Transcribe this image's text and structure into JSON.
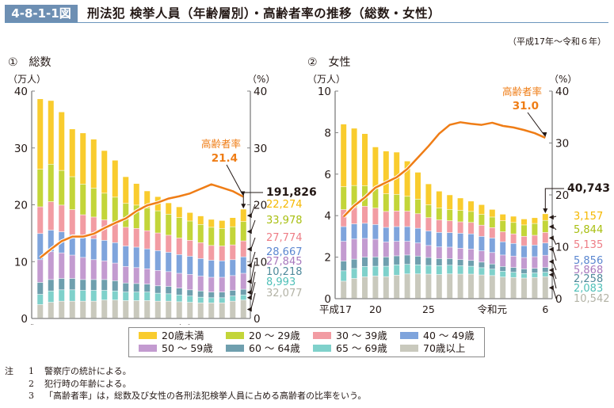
{
  "header": {
    "figure_number": "4-8-1-1図",
    "title": "刑法犯 検挙人員（年齢層別）・高齢者率の推移（総数・女性）",
    "period": "（平成17年～令和６年）"
  },
  "legend": [
    {
      "label": "20歳未満",
      "color": "#f9cc2e"
    },
    {
      "label": "20 ～ 29歳",
      "color": "#c3d539"
    },
    {
      "label": "30 ～ 39歳",
      "color": "#f29ca3"
    },
    {
      "label": "40 ～ 49歳",
      "color": "#7fa4dc"
    },
    {
      "label": "50 ～ 59歳",
      "color": "#c39bd0"
    },
    {
      "label": "60 ～ 64歳",
      "color": "#6f9fae"
    },
    {
      "label": "65 ～ 69歳",
      "color": "#7fd1cb"
    },
    {
      "label": "70歳以上",
      "color": "#c9c9bd"
    }
  ],
  "notes": {
    "head": "注",
    "items": [
      {
        "num": "1",
        "text": "警察庁の統計による。"
      },
      {
        "num": "2",
        "text": "犯行時の年齢による。"
      },
      {
        "num": "3",
        "text": "「高齢者率」は，総数及び女性の各刑法犯検挙人員に占める高齢者の比率をいう。"
      }
    ]
  },
  "line_color": "#ef7d16",
  "chart_data": [
    {
      "type": "bar",
      "subtype": "stacked bar with line (secondary axis)",
      "panel_label": "①　総数",
      "ylabel": "（万人）",
      "y2label": "（%）",
      "ylim": [
        0,
        40
      ],
      "yticks": [
        0,
        10,
        20,
        30,
        40
      ],
      "y2lim": [
        0,
        40
      ],
      "y2ticks": [
        0,
        10,
        20,
        30,
        40
      ],
      "x_tick_labels": [
        {
          "index": 0,
          "label": "平成17"
        },
        {
          "index": 3,
          "label": "20"
        },
        {
          "index": 8,
          "label": "25"
        },
        {
          "index": 14,
          "label": "令和元"
        },
        {
          "index": 19,
          "label": "6"
        }
      ],
      "categories": [
        "H17",
        "H18",
        "H19",
        "H20",
        "H21",
        "H22",
        "H23",
        "H24",
        "H25",
        "H26",
        "H27",
        "H28",
        "H29",
        "H30",
        "R1",
        "R2",
        "R3",
        "R4",
        "R5",
        "R6"
      ],
      "series": [
        {
          "name": "70歳以上",
          "values": [
            2.4,
            2.8,
            3.0,
            3.0,
            3.0,
            3.0,
            3.2,
            3.2,
            3.1,
            3.1,
            3.1,
            3.0,
            3.0,
            2.9,
            2.8,
            2.7,
            2.7,
            2.7,
            3.0,
            3.2
          ]
        },
        {
          "name": "65 ～ 69歳",
          "values": [
            1.8,
            2.0,
            2.0,
            2.0,
            1.9,
            1.9,
            1.7,
            1.6,
            1.5,
            1.5,
            1.5,
            1.4,
            1.3,
            1.2,
            1.1,
            1.0,
            0.9,
            0.9,
            0.9,
            0.9
          ]
        },
        {
          "name": "60 ～ 64歳",
          "values": [
            2.1,
            2.0,
            2.0,
            2.0,
            1.9,
            1.9,
            1.9,
            1.8,
            1.6,
            1.5,
            1.4,
            1.3,
            1.3,
            1.2,
            1.1,
            1.1,
            1.0,
            1.0,
            1.0,
            1.0
          ]
        },
        {
          "name": "50 ～ 59歳",
          "values": [
            4.0,
            4.9,
            4.5,
            4.1,
            3.9,
            3.5,
            3.3,
            3.1,
            2.9,
            2.8,
            2.7,
            2.7,
            2.6,
            2.6,
            2.7,
            2.6,
            2.6,
            2.6,
            2.6,
            2.8
          ]
        },
        {
          "name": "40 ～ 49歳",
          "values": [
            4.6,
            3.8,
            3.7,
            3.6,
            3.5,
            3.7,
            3.6,
            3.6,
            3.6,
            3.6,
            3.5,
            3.5,
            3.4,
            3.3,
            3.2,
            3.1,
            3.0,
            2.9,
            2.8,
            2.9
          ]
        },
        {
          "name": "30 ～ 39歳",
          "values": [
            4.7,
            5.0,
            4.7,
            4.4,
            4.0,
            3.8,
            3.6,
            3.4,
            3.3,
            3.3,
            3.2,
            3.1,
            3.0,
            2.9,
            2.8,
            2.8,
            2.6,
            2.6,
            2.6,
            2.8
          ]
        },
        {
          "name": "20 ～ 29歳",
          "values": [
            6.6,
            6.6,
            6.1,
            5.8,
            5.4,
            5.1,
            4.7,
            4.6,
            4.2,
            4.1,
            4.0,
            3.9,
            3.7,
            3.6,
            3.4,
            3.2,
            3.2,
            3.1,
            3.2,
            3.4
          ]
        },
        {
          "name": "20歳未満",
          "values": [
            12.4,
            11.2,
            10.3,
            8.4,
            9.0,
            8.6,
            7.5,
            6.5,
            4.7,
            3.8,
            3.0,
            2.5,
            2.0,
            1.9,
            1.5,
            1.5,
            1.4,
            1.4,
            1.6,
            2.2
          ]
        }
      ],
      "line": {
        "name": "高齢者率",
        "values": [
          10.7,
          12.2,
          13.6,
          14.4,
          14.4,
          14.9,
          15.9,
          16.8,
          17.6,
          18.9,
          19.9,
          20.4,
          21.1,
          21.5,
          22.0,
          22.8,
          23.6,
          23.0,
          22.4,
          21.4
        ]
      },
      "annotations": {
        "rate_label": "高齢者率",
        "rate_value": "21.4",
        "total_value": "191,826",
        "latest_values": [
          {
            "name": "20歳未満",
            "value": "22,274"
          },
          {
            "name": "20 ～ 29歳",
            "value": "33,978"
          },
          {
            "name": "30 ～ 39歳",
            "value": "27,774"
          },
          {
            "name": "40 ～ 49歳",
            "value": "28,667"
          },
          {
            "name": "50 ～ 59歳",
            "value": "27,845"
          },
          {
            "name": "60 ～ 64歳",
            "value": "10,218"
          },
          {
            "name": "65 ～ 69歳",
            "value": "8,993"
          },
          {
            "name": "70歳以上",
            "value": "32,077"
          }
        ]
      }
    },
    {
      "type": "bar",
      "subtype": "stacked bar with line (secondary axis)",
      "panel_label": "②　女性",
      "ylabel": "（万人）",
      "y2label": "（%）",
      "ylim": [
        0,
        10
      ],
      "yticks": [
        0,
        2,
        4,
        6,
        8,
        10
      ],
      "y2lim": [
        0,
        40
      ],
      "y2ticks": [
        0,
        10,
        20,
        30,
        40
      ],
      "x_tick_labels": [
        {
          "index": 0,
          "label": "平成17"
        },
        {
          "index": 3,
          "label": "20"
        },
        {
          "index": 8,
          "label": "25"
        },
        {
          "index": 14,
          "label": "令和元"
        },
        {
          "index": 19,
          "label": "6"
        }
      ],
      "categories": [
        "H17",
        "H18",
        "H19",
        "H20",
        "H21",
        "H22",
        "H23",
        "H24",
        "H25",
        "H26",
        "H27",
        "H28",
        "H29",
        "H30",
        "R1",
        "R2",
        "R3",
        "R4",
        "R5",
        "R6"
      ],
      "series": [
        {
          "name": "70歳以上",
          "values": [
            0.83,
            0.96,
            1.04,
            1.08,
            1.05,
            1.12,
            1.18,
            1.18,
            1.17,
            1.15,
            1.18,
            1.17,
            1.17,
            1.13,
            1.1,
            1.03,
            1.01,
            0.98,
            1.01,
            1.05
          ]
        },
        {
          "name": "65 ～ 69歳",
          "values": [
            0.5,
            0.48,
            0.5,
            0.47,
            0.5,
            0.5,
            0.46,
            0.44,
            0.42,
            0.43,
            0.42,
            0.4,
            0.38,
            0.35,
            0.31,
            0.28,
            0.25,
            0.22,
            0.22,
            0.21
          ]
        },
        {
          "name": "60 ～ 64歳",
          "values": [
            0.47,
            0.45,
            0.45,
            0.45,
            0.45,
            0.43,
            0.45,
            0.42,
            0.38,
            0.34,
            0.32,
            0.3,
            0.28,
            0.27,
            0.25,
            0.23,
            0.23,
            0.22,
            0.22,
            0.23
          ]
        },
        {
          "name": "50 ～ 59歳",
          "values": [
            0.95,
            0.97,
            0.9,
            0.85,
            0.72,
            0.7,
            0.66,
            0.63,
            0.58,
            0.56,
            0.55,
            0.55,
            0.55,
            0.54,
            0.55,
            0.55,
            0.55,
            0.55,
            0.56,
            0.59
          ]
        },
        {
          "name": "40 ～ 49歳",
          "values": [
            0.71,
            0.73,
            0.73,
            0.71,
            0.7,
            0.71,
            0.71,
            0.71,
            0.7,
            0.7,
            0.7,
            0.72,
            0.73,
            0.7,
            0.7,
            0.64,
            0.61,
            0.57,
            0.56,
            0.59
          ]
        },
        {
          "name": "30 ～ 39歳",
          "values": [
            0.82,
            0.79,
            0.82,
            0.79,
            0.77,
            0.75,
            0.74,
            0.7,
            0.64,
            0.6,
            0.57,
            0.55,
            0.55,
            0.54,
            0.5,
            0.48,
            0.46,
            0.45,
            0.47,
            0.51
          ]
        },
        {
          "name": "20 ～ 29歳",
          "values": [
            1.1,
            1.06,
            0.99,
            0.94,
            0.85,
            0.8,
            0.72,
            0.7,
            0.62,
            0.58,
            0.55,
            0.55,
            0.53,
            0.52,
            0.51,
            0.53,
            0.55,
            0.55,
            0.57,
            0.58
          ]
        },
        {
          "name": "20歳未満",
          "values": [
            3.02,
            2.76,
            2.51,
            2.01,
            2.06,
            2.04,
            1.7,
            1.3,
            1.01,
            0.81,
            0.7,
            0.6,
            0.5,
            0.47,
            0.37,
            0.32,
            0.3,
            0.29,
            0.28,
            0.32
          ]
        }
      ],
      "line": {
        "name": "高齢者率",
        "values": [
          15.8,
          17.9,
          19.5,
          21.4,
          22.4,
          23.4,
          25.0,
          27.2,
          29.4,
          31.8,
          33.5,
          34.0,
          33.7,
          33.5,
          33.9,
          33.3,
          33.0,
          32.5,
          31.9,
          31.0
        ]
      },
      "annotations": {
        "rate_label": "高齢者率",
        "rate_value": "31.0",
        "total_value": "40,743",
        "latest_values": [
          {
            "name": "20歳未満",
            "value": "3,157"
          },
          {
            "name": "20 ～ 29歳",
            "value": "5,844"
          },
          {
            "name": "30 ～ 39歳",
            "value": "5,135"
          },
          {
            "name": "40 ～ 49歳",
            "value": "5,856"
          },
          {
            "name": "50 ～ 59歳",
            "value": "5,868"
          },
          {
            "name": "60 ～ 64歳",
            "value": "2,258"
          },
          {
            "name": "65 ～ 69歳",
            "value": "2,083"
          },
          {
            "name": "70歳以上",
            "value": "10,542"
          }
        ]
      }
    }
  ]
}
